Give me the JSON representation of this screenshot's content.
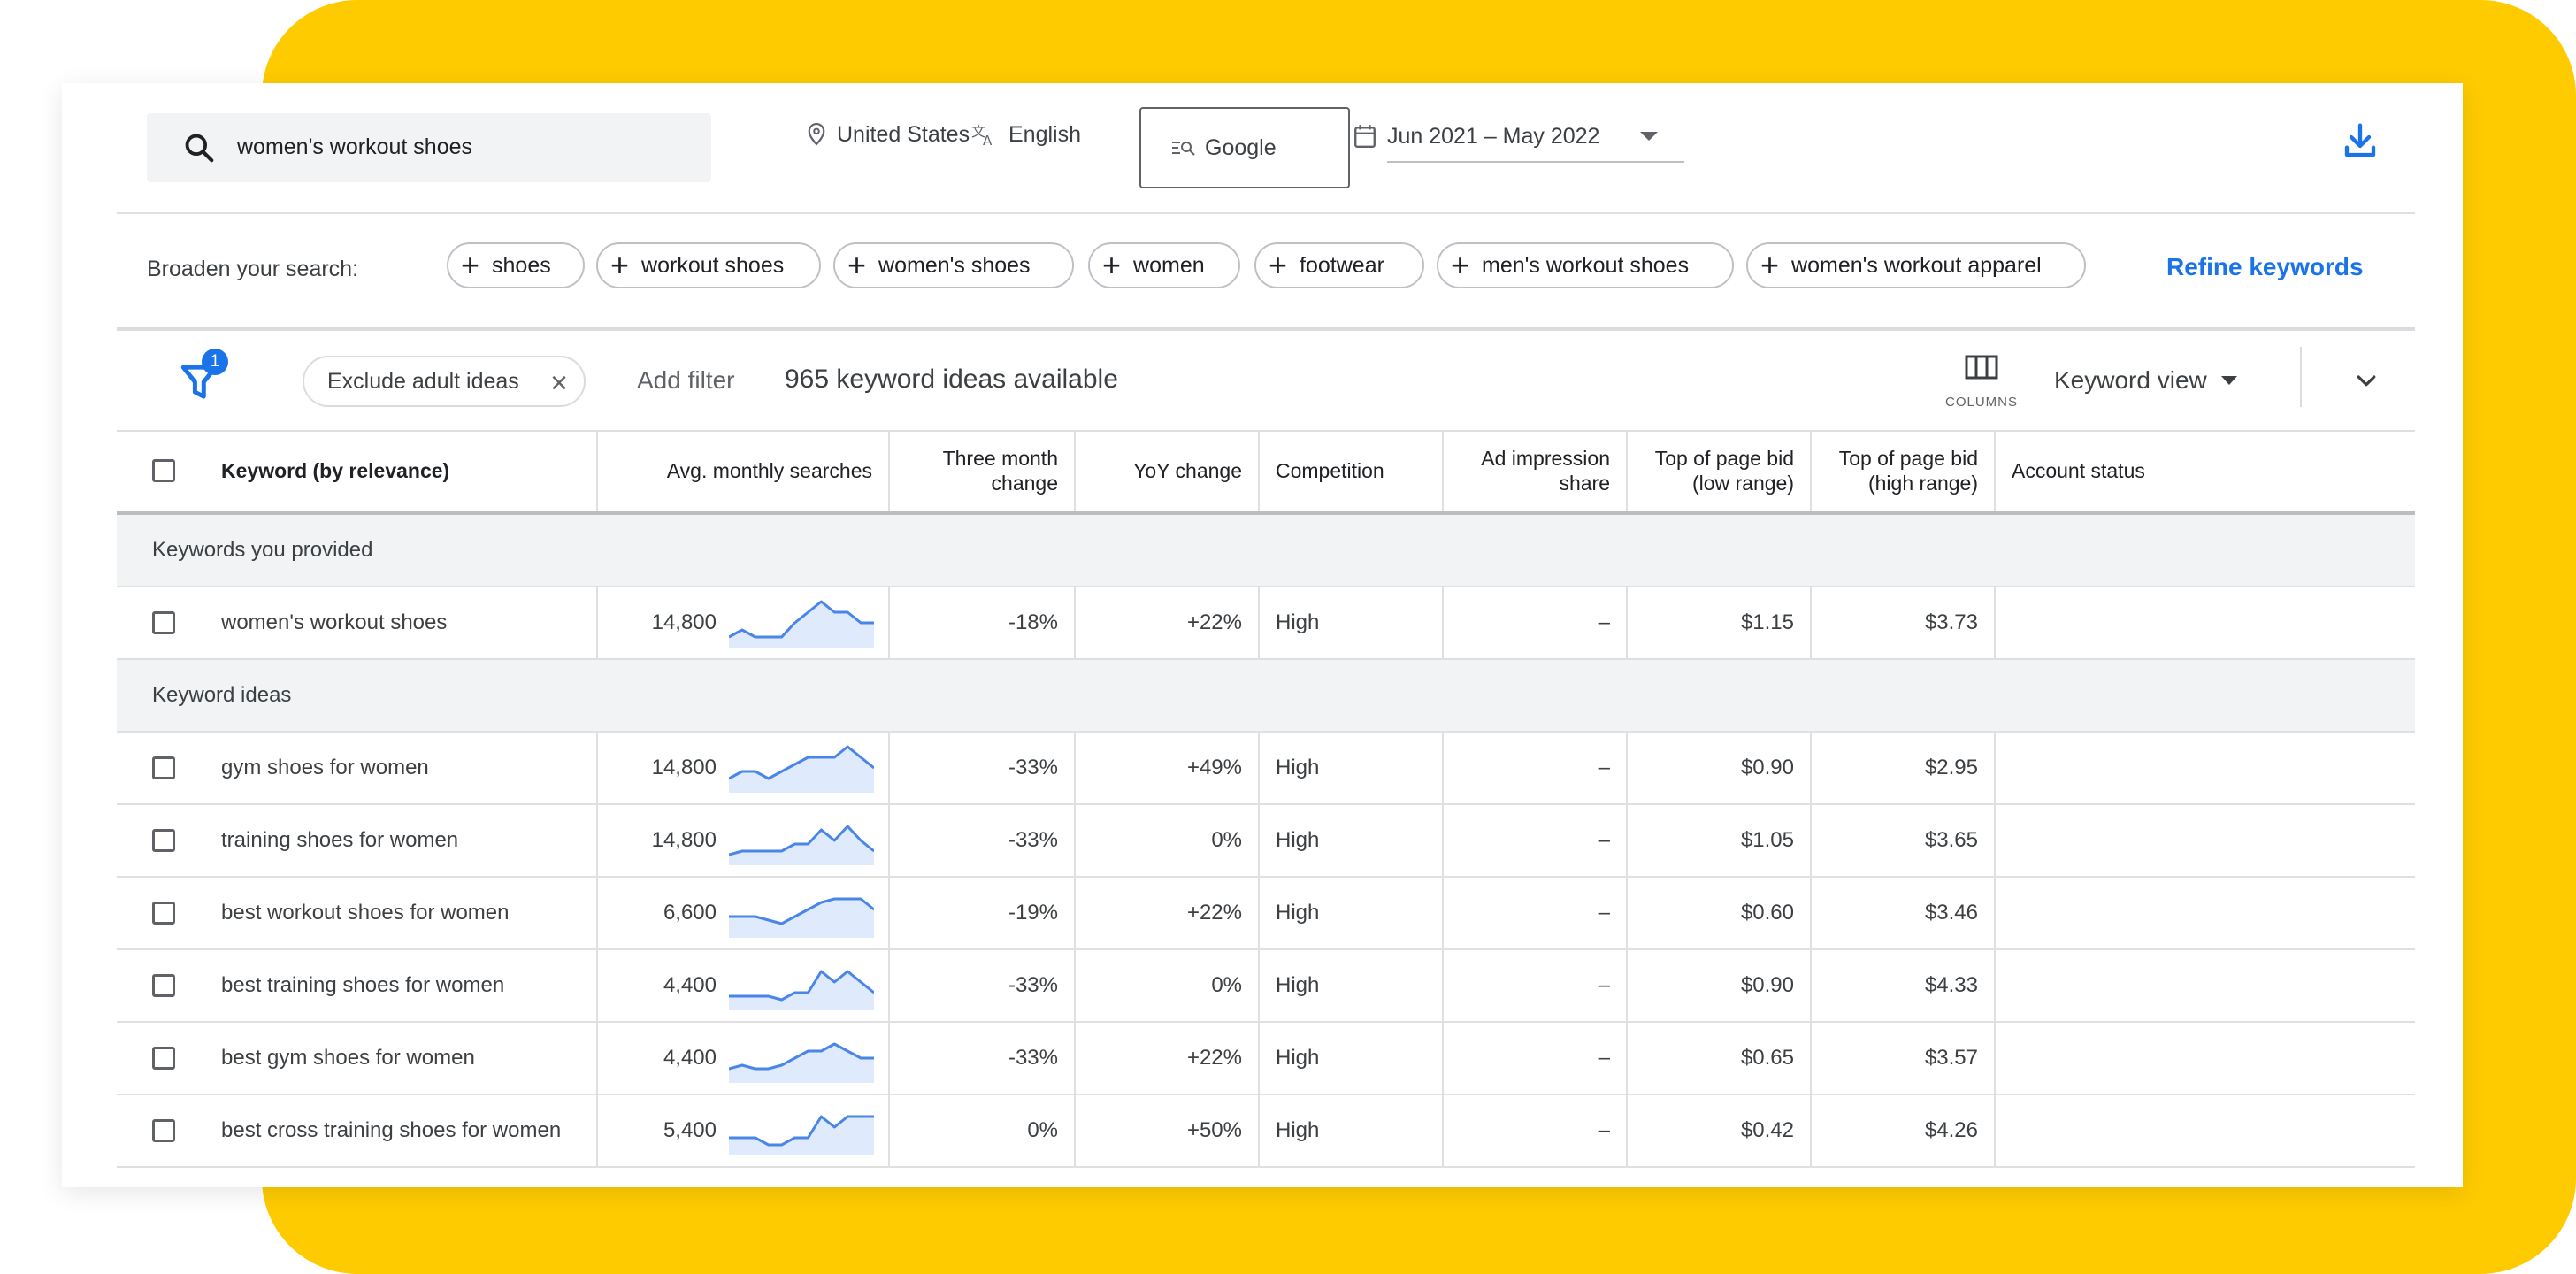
{
  "search": {
    "query": "women's workout shoes"
  },
  "location": "United States",
  "language": "English",
  "engine": "Google",
  "date_range": "Jun 2021 – May 2022",
  "broaden": {
    "label": "Broaden your search:",
    "chips": [
      "shoes",
      "workout shoes",
      "women's shoes",
      "women",
      "footwear",
      "men's workout shoes",
      "women's workout apparel"
    ],
    "refine_label": "Refine keywords"
  },
  "filters": {
    "badge_count": "1",
    "exclude_chip": "Exclude adult ideas",
    "add_filter": "Add filter",
    "ideas_count": "965 keyword ideas available",
    "columns_label": "COLUMNS",
    "view_label": "Keyword view"
  },
  "table": {
    "headers": {
      "keyword": "Keyword (by relevance)",
      "avg": "Avg. monthly searches",
      "three_month": "Three month change",
      "yoy": "YoY change",
      "competition": "Competition",
      "ad_share": "Ad impression share",
      "bid_low": "Top of page bid (low range)",
      "bid_high": "Top of page bid (high range)",
      "account": "Account status"
    },
    "section_provided": "Keywords you provided",
    "section_ideas": "Keyword ideas",
    "provided": [
      {
        "keyword": "women's workout shoes",
        "avg": "14,800",
        "trend": [
          2,
          4,
          2,
          2,
          2,
          6,
          9,
          12,
          9,
          9,
          6,
          6
        ],
        "three_month": "-18%",
        "yoy": "+22%",
        "competition": "High",
        "ad_share": "–",
        "bid_low": "$1.15",
        "bid_high": "$3.73"
      }
    ],
    "ideas": [
      {
        "keyword": "gym shoes for women",
        "avg": "14,800",
        "trend": [
          3,
          5,
          5,
          3,
          5,
          7,
          9,
          9,
          9,
          12,
          9,
          6
        ],
        "three_month": "-33%",
        "yoy": "+49%",
        "competition": "High",
        "ad_share": "–",
        "bid_low": "$0.90",
        "bid_high": "$2.95"
      },
      {
        "keyword": "training shoes for women",
        "avg": "14,800",
        "trend": [
          2,
          3,
          3,
          3,
          3,
          5,
          5,
          9,
          6,
          10,
          6,
          3
        ],
        "three_month": "-33%",
        "yoy": "0%",
        "competition": "High",
        "ad_share": "–",
        "bid_low": "$1.05",
        "bid_high": "$3.65"
      },
      {
        "keyword": "best workout shoes for women",
        "avg": "6,600",
        "trend": [
          5,
          5,
          5,
          4,
          3,
          5,
          7,
          9,
          10,
          10,
          10,
          7
        ],
        "three_month": "-19%",
        "yoy": "+22%",
        "competition": "High",
        "ad_share": "–",
        "bid_low": "$0.60",
        "bid_high": "$3.46"
      },
      {
        "keyword": "best training shoes for women",
        "avg": "4,400",
        "trend": [
          3,
          3,
          3,
          3,
          2,
          4,
          4,
          10,
          7,
          10,
          7,
          4
        ],
        "three_month": "-33%",
        "yoy": "0%",
        "competition": "High",
        "ad_share": "–",
        "bid_low": "$0.90",
        "bid_high": "$4.33"
      },
      {
        "keyword": "best gym shoes for women",
        "avg": "4,400",
        "trend": [
          3,
          4,
          3,
          3,
          4,
          6,
          8,
          8,
          10,
          8,
          6,
          6
        ],
        "three_month": "-33%",
        "yoy": "+22%",
        "competition": "High",
        "ad_share": "–",
        "bid_low": "$0.65",
        "bid_high": "$3.57"
      },
      {
        "keyword": "best cross training shoes for women",
        "avg": "5,400",
        "trend": [
          4,
          4,
          4,
          2,
          2,
          4,
          4,
          10,
          7,
          10,
          10,
          10
        ],
        "three_month": "0%",
        "yoy": "+50%",
        "competition": "High",
        "ad_share": "–",
        "bid_low": "$0.42",
        "bid_high": "$4.26"
      }
    ]
  },
  "colors": {
    "accent": "#1a73e8",
    "background_frame": "#fecb00",
    "sparkline": "#4a86e8",
    "sparkline_fill": "#d2e3fc"
  }
}
